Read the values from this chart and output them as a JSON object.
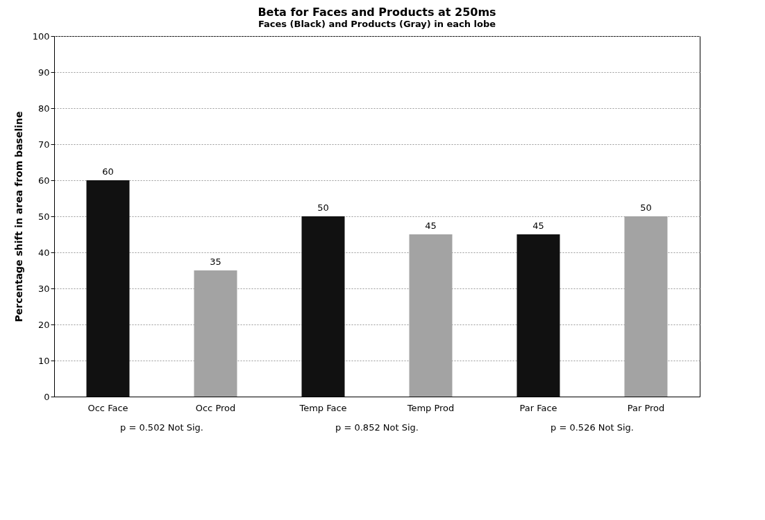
{
  "chart_data": {
    "type": "bar",
    "title": "Beta for Faces and Products at 250ms",
    "subtitle": "Faces (Black) and Products (Gray) in each lobe",
    "ylabel": "Percentage shift in area from baseline",
    "categories": [
      "Occ Face",
      "Occ Prod",
      "Temp Face",
      "Temp Prod",
      "Par Face",
      "Par Prod"
    ],
    "values": [
      60,
      35,
      50,
      45,
      45,
      50
    ],
    "colors": [
      "#111111",
      "#a3a3a3",
      "#111111",
      "#a3a3a3",
      "#111111",
      "#a3a3a3"
    ],
    "ylim": [
      0,
      100
    ],
    "yticks": [
      0,
      10,
      20,
      30,
      40,
      50,
      60,
      70,
      80,
      90,
      100
    ],
    "grid": "y",
    "data_labels": true,
    "legend": false,
    "annotations": [
      "p = 0.502 Not Sig.",
      "p = 0.852 Not Sig.",
      "p = 0.526 Not Sig."
    ]
  }
}
